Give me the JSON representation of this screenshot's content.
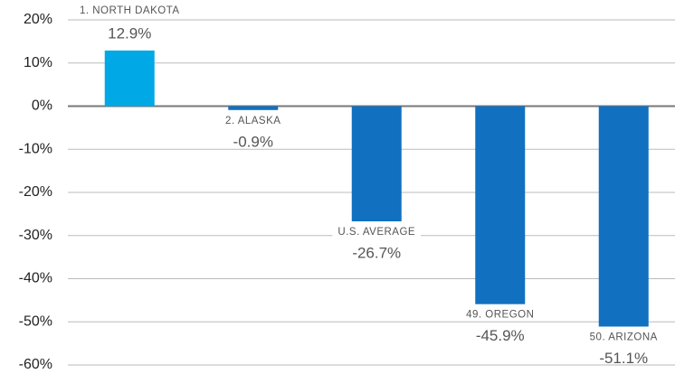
{
  "chart_data": {
    "type": "bar",
    "categories": [
      "1. NORTH DAKOTA",
      "2. ALASKA",
      "U.S. AVERAGE",
      "49. OREGON",
      "50. ARIZONA"
    ],
    "values": [
      12.9,
      -0.9,
      -26.7,
      -45.9,
      -51.1
    ],
    "value_labels": [
      "12.9%",
      "-0.9%",
      "-26.7%",
      "-45.9%",
      "-51.1%"
    ],
    "colors": [
      "#00a9e6",
      "#1170c0",
      "#1170c0",
      "#1170c0",
      "#1170c0"
    ],
    "ylim": [
      -60,
      20
    ],
    "yticks": [
      {
        "value": 20,
        "label": "20%"
      },
      {
        "value": 10,
        "label": "10%"
      },
      {
        "value": 0,
        "label": "0%"
      },
      {
        "value": -10,
        "label": "-10%"
      },
      {
        "value": -20,
        "label": "-20%"
      },
      {
        "value": -30,
        "label": "-30%"
      },
      {
        "value": -40,
        "label": "-40%"
      },
      {
        "value": -50,
        "label": "-50%"
      },
      {
        "value": -60,
        "label": "-60%"
      }
    ],
    "grid": true
  }
}
